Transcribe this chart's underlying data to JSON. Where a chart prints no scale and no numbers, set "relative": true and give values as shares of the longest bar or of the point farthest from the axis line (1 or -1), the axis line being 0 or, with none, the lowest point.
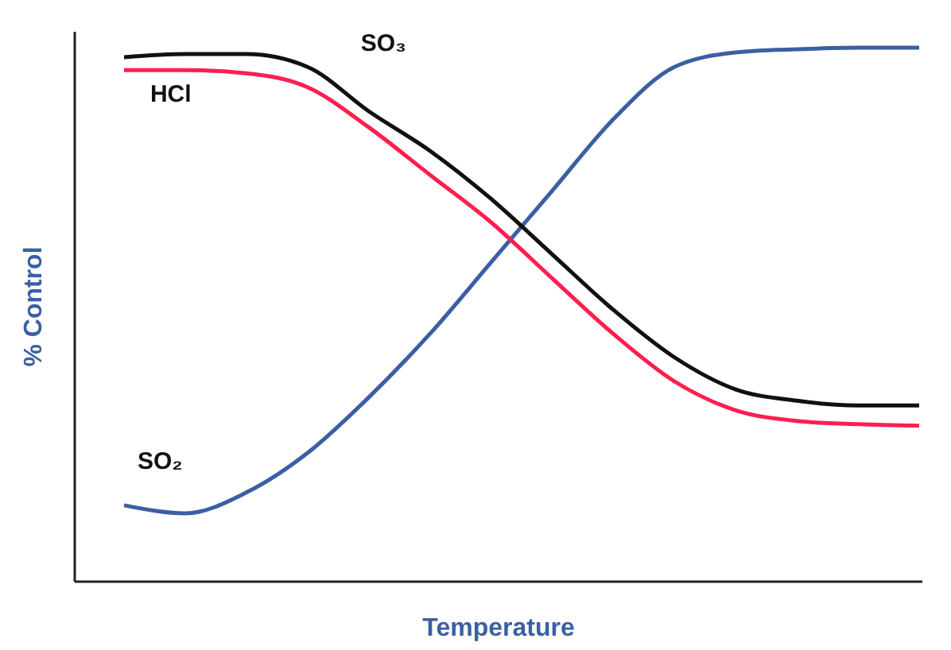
{
  "chart_data": {
    "type": "line",
    "relative": true,
    "xlabel": "Temperature",
    "ylabel": "% Control",
    "categories": [
      null,
      null,
      null,
      null,
      null,
      null,
      null,
      null,
      null,
      null,
      null,
      null,
      null,
      null
    ],
    "series": [
      {
        "name": "SO₂",
        "color": "#3b5fa3",
        "values": [
          0.143,
          0.128,
          0.167,
          0.241,
          0.345,
          0.464,
          0.598,
          0.732,
          0.866,
          0.964,
          0.991,
          0.997,
          1,
          1
        ]
      },
      {
        "name": "SO₃",
        "color": "#111111",
        "values": [
          0.982,
          0.988,
          0.988,
          0.964,
          0.881,
          0.807,
          0.717,
          0.613,
          0.509,
          0.42,
          0.36,
          0.339,
          0.33,
          0.33
        ]
      },
      {
        "name": "HCl",
        "color": "#ff1f4f",
        "values": [
          0.958,
          0.958,
          0.952,
          0.926,
          0.851,
          0.762,
          0.673,
          0.568,
          0.464,
          0.375,
          0.321,
          0.301,
          0.295,
          0.292
        ]
      }
    ],
    "marker": "none",
    "line_style": "solid"
  }
}
